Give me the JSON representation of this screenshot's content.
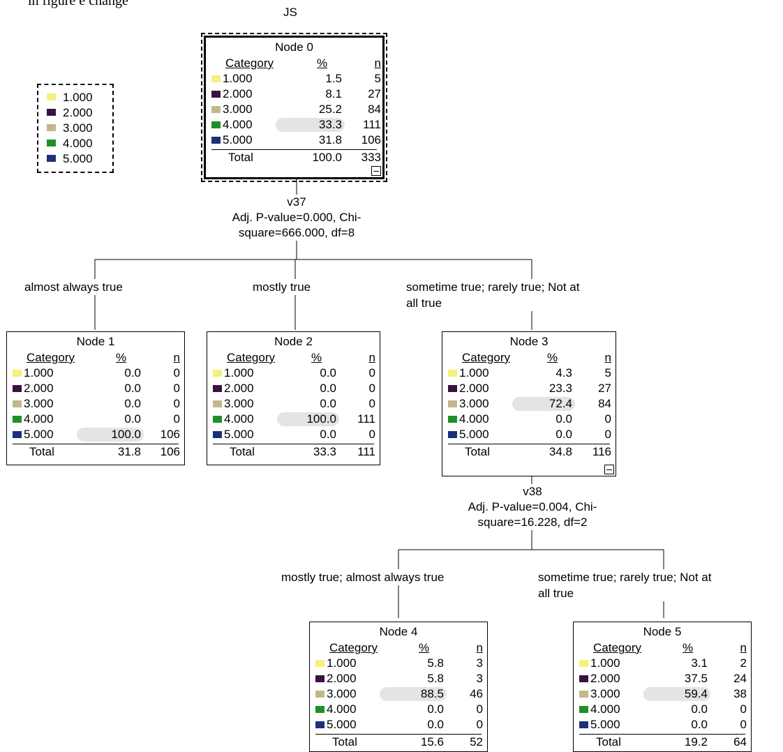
{
  "header": {
    "caption_fragment": "in figure e change",
    "target": "JS"
  },
  "colors": {
    "1.000": "#f6f07c",
    "2.000": "#3a1240",
    "3.000": "#c2b88a",
    "4.000": "#1f8f2a",
    "5.000": "#1c2f7a"
  },
  "legend": [
    {
      "label": "1.000",
      "color": "#f6f07c"
    },
    {
      "label": "2.000",
      "color": "#3a1240"
    },
    {
      "label": "3.000",
      "color": "#c2b88a"
    },
    {
      "label": "4.000",
      "color": "#1f8f2a"
    },
    {
      "label": "5.000",
      "color": "#1c2f7a"
    }
  ],
  "nodes": [
    {
      "id": 0,
      "title": "Node 0",
      "col_category": "Category",
      "col_pct": "%",
      "col_n": "n",
      "rows": [
        [
          "1.000",
          "1.5",
          "5"
        ],
        [
          "2.000",
          "8.1",
          "27"
        ],
        [
          "3.000",
          "25.2",
          "84"
        ],
        [
          "4.000",
          "33.3",
          "111"
        ],
        [
          "5.000",
          "31.8",
          "106"
        ]
      ],
      "highlight": 3,
      "total_label": "Total",
      "total_pct": "100.0",
      "total_n": "333"
    },
    {
      "id": 1,
      "title": "Node 1",
      "col_category": "Category",
      "col_pct": "%",
      "col_n": "n",
      "rows": [
        [
          "1.000",
          "0.0",
          "0"
        ],
        [
          "2.000",
          "0.0",
          "0"
        ],
        [
          "3.000",
          "0.0",
          "0"
        ],
        [
          "4.000",
          "0.0",
          "0"
        ],
        [
          "5.000",
          "100.0",
          "106"
        ]
      ],
      "highlight": 4,
      "total_label": "Total",
      "total_pct": "31.8",
      "total_n": "106"
    },
    {
      "id": 2,
      "title": "Node 2",
      "col_category": "Category",
      "col_pct": "%",
      "col_n": "n",
      "rows": [
        [
          "1.000",
          "0.0",
          "0"
        ],
        [
          "2.000",
          "0.0",
          "0"
        ],
        [
          "3.000",
          "0.0",
          "0"
        ],
        [
          "4.000",
          "100.0",
          "111"
        ],
        [
          "5.000",
          "0.0",
          "0"
        ]
      ],
      "highlight": 3,
      "total_label": "Total",
      "total_pct": "33.3",
      "total_n": "111"
    },
    {
      "id": 3,
      "title": "Node 3",
      "col_category": "Category",
      "col_pct": "%",
      "col_n": "n",
      "rows": [
        [
          "1.000",
          "4.3",
          "5"
        ],
        [
          "2.000",
          "23.3",
          "27"
        ],
        [
          "3.000",
          "72.4",
          "84"
        ],
        [
          "4.000",
          "0.0",
          "0"
        ],
        [
          "5.000",
          "0.0",
          "0"
        ]
      ],
      "highlight": 2,
      "total_label": "Total",
      "total_pct": "34.8",
      "total_n": "116"
    },
    {
      "id": 4,
      "title": "Node 4",
      "col_category": "Category",
      "col_pct": "%",
      "col_n": "n",
      "rows": [
        [
          "1.000",
          "5.8",
          "3"
        ],
        [
          "2.000",
          "5.8",
          "3"
        ],
        [
          "3.000",
          "88.5",
          "46"
        ],
        [
          "4.000",
          "0.0",
          "0"
        ],
        [
          "5.000",
          "0.0",
          "0"
        ]
      ],
      "highlight": 2,
      "total_label": "Total",
      "total_pct": "15.6",
      "total_n": "52"
    },
    {
      "id": 5,
      "title": "Node 5",
      "col_category": "Category",
      "col_pct": "%",
      "col_n": "n",
      "rows": [
        [
          "1.000",
          "3.1",
          "2"
        ],
        [
          "2.000",
          "37.5",
          "24"
        ],
        [
          "3.000",
          "59.4",
          "38"
        ],
        [
          "4.000",
          "0.0",
          "0"
        ],
        [
          "5.000",
          "0.0",
          "0"
        ]
      ],
      "highlight": 2,
      "total_label": "Total",
      "total_pct": "19.2",
      "total_n": "64"
    }
  ],
  "splits": [
    {
      "variable": "v37",
      "line1": "Adj. P-value=0.000, Chi-",
      "line2": "square=666.000, df=8"
    },
    {
      "variable": "v38",
      "line1": "Adj. P-value=0.004, Chi-",
      "line2": "square=16.228, df=2"
    }
  ],
  "branches": [
    {
      "line1": "almost always true",
      "line2": ""
    },
    {
      "line1": "mostly true",
      "line2": ""
    },
    {
      "line1": "sometime true; rarely true; Not at",
      "line2": "all true"
    },
    {
      "line1": "mostly true; almost always true",
      "line2": ""
    },
    {
      "line1": "sometime true; rarely true; Not at",
      "line2": "all true"
    }
  ]
}
